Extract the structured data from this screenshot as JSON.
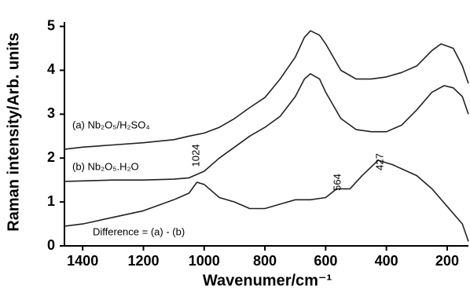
{
  "chart_data": {
    "type": "line",
    "xlabel": "Wavenumer/cm⁻¹",
    "ylabel": "Raman intensity/Arb. units",
    "xlim": [
      1460,
      130
    ],
    "ylim": [
      0,
      5.1
    ],
    "xticks": [
      1400,
      1200,
      1000,
      800,
      600,
      400,
      200
    ],
    "yticks": [
      0,
      1,
      2,
      3,
      4,
      5
    ],
    "grid": false,
    "series": [
      {
        "name": "(a) Nb₂O₅/H₂SO₄",
        "color": "#222222",
        "x": [
          1460,
          1400,
          1300,
          1200,
          1100,
          1050,
          1000,
          950,
          900,
          850,
          800,
          750,
          700,
          670,
          650,
          620,
          600,
          550,
          500,
          450,
          400,
          350,
          300,
          250,
          220,
          180,
          150,
          130
        ],
        "values": [
          2.2,
          2.25,
          2.3,
          2.35,
          2.42,
          2.5,
          2.57,
          2.7,
          2.9,
          3.15,
          3.38,
          3.8,
          4.3,
          4.75,
          4.9,
          4.8,
          4.6,
          4.0,
          3.8,
          3.8,
          3.85,
          3.95,
          4.1,
          4.45,
          4.6,
          4.5,
          4.1,
          3.7
        ]
      },
      {
        "name": "(b) Nb₂O₅.H₂O",
        "color": "#222222",
        "x": [
          1460,
          1400,
          1300,
          1200,
          1100,
          1050,
          1000,
          950,
          900,
          850,
          800,
          750,
          700,
          670,
          650,
          620,
          600,
          550,
          500,
          450,
          400,
          350,
          300,
          250,
          210,
          180,
          150,
          130
        ],
        "values": [
          1.47,
          1.48,
          1.5,
          1.5,
          1.52,
          1.55,
          1.7,
          2.0,
          2.25,
          2.5,
          2.7,
          2.95,
          3.4,
          3.8,
          3.92,
          3.8,
          3.5,
          2.9,
          2.65,
          2.6,
          2.6,
          2.75,
          3.1,
          3.5,
          3.65,
          3.6,
          3.4,
          3.0
        ]
      },
      {
        "name": "Difference = (a) - (b)",
        "color": "#222222",
        "x": [
          1460,
          1400,
          1300,
          1200,
          1100,
          1050,
          1024,
          1000,
          950,
          900,
          850,
          800,
          750,
          700,
          650,
          600,
          564,
          520,
          480,
          427,
          380,
          300,
          250,
          200,
          150,
          130
        ],
        "values": [
          0.45,
          0.5,
          0.65,
          0.8,
          1.05,
          1.2,
          1.45,
          1.4,
          1.1,
          1.0,
          0.85,
          0.85,
          0.95,
          1.05,
          1.05,
          1.1,
          1.3,
          1.3,
          1.6,
          1.95,
          1.85,
          1.6,
          1.3,
          0.9,
          0.5,
          0.1
        ]
      }
    ],
    "annotations": [
      "1024",
      "564",
      "427"
    ]
  }
}
